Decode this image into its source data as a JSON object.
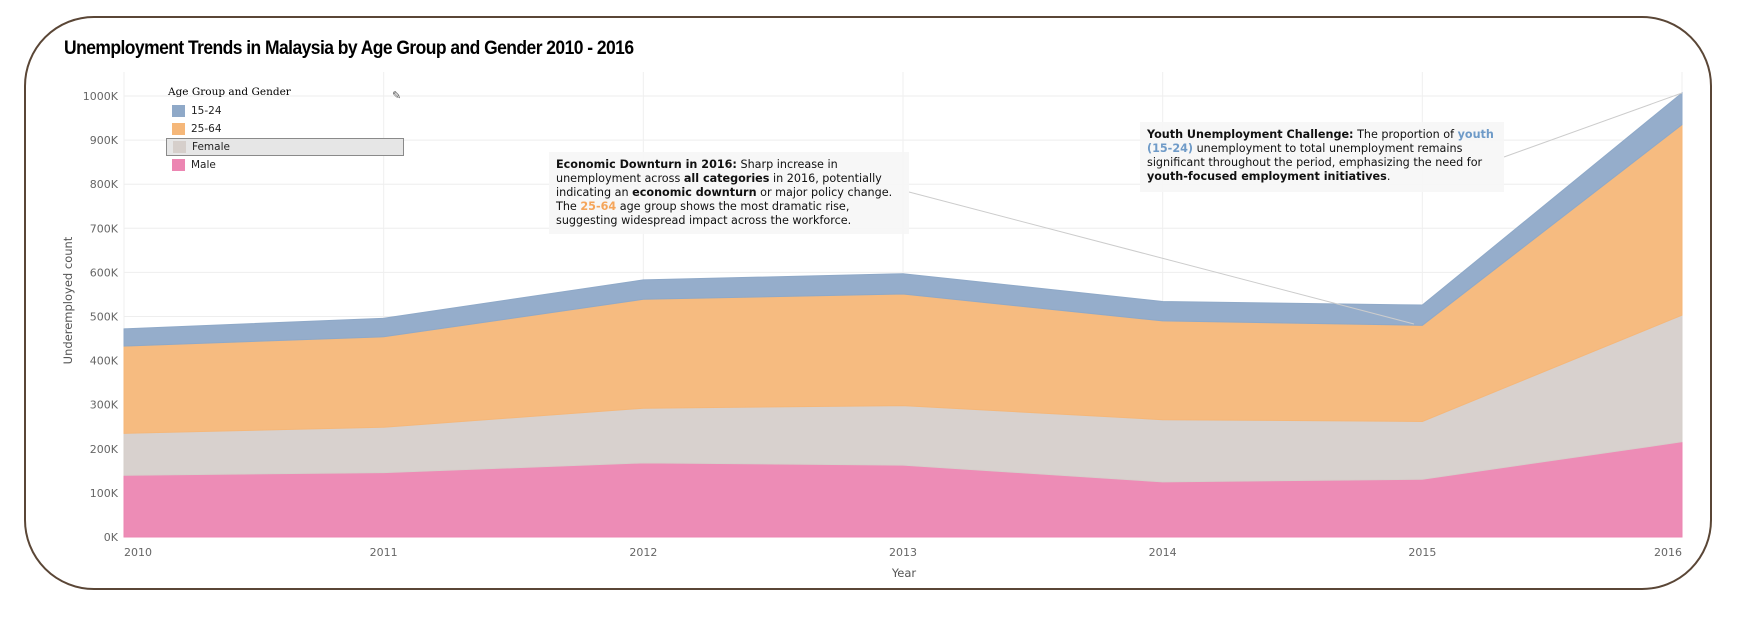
{
  "title": "Unemployment Trends in Malaysia by Age Group and Gender 2010 - 2016",
  "legend": {
    "title": "Age Group and Gender",
    "items": [
      {
        "label": "15-24",
        "color": "#8fa9c8"
      },
      {
        "label": "25-64",
        "color": "#f5b779"
      },
      {
        "label": "Female",
        "color": "#d6cfcb"
      },
      {
        "label": "Male",
        "color": "#ec86b2"
      }
    ]
  },
  "annotations": {
    "downturn": {
      "heading": "Economic Downturn in 2016:",
      "t1": " Sharp increase in unemployment across ",
      "b1": "all categories",
      "t2": " in 2016, potentially indicating an ",
      "b2": "economic downturn",
      "t3": " or major policy change. The ",
      "hl": "25-64",
      "t4": " age group shows the most dramatic rise, suggesting widespread impact across the workforce."
    },
    "youth": {
      "heading": "Youth Unemployment Challenge:",
      "t1": " The proportion of ",
      "hl": "youth (15-24)",
      "t2": " unemployment to total unemployment remains significant throughout the period, emphasizing the need for ",
      "b1": "youth-focused employment initiatives",
      "t3": "."
    }
  },
  "chart_data": {
    "type": "area",
    "title": "Unemployment Trends in Malaysia by Age Group and Gender 2010 - 2016",
    "xlabel": "Year",
    "ylabel": "Underemployed count",
    "x": [
      "2010",
      "2011",
      "2012",
      "2013",
      "2014",
      "2015",
      "2016"
    ],
    "ylim": [
      0,
      1000000
    ],
    "yticks": [
      "0K",
      "100K",
      "200K",
      "300K",
      "400K",
      "500K",
      "600K",
      "700K",
      "800K",
      "900K",
      "1000K"
    ],
    "stacked": true,
    "series": [
      {
        "name": "Male",
        "color": "#ec86b2",
        "values": [
          140000,
          146000,
          168000,
          163000,
          125000,
          131000,
          216000
        ]
      },
      {
        "name": "Female",
        "color": "#d6cfcb",
        "values": [
          95000,
          103000,
          124000,
          135000,
          141000,
          131000,
          287000
        ]
      },
      {
        "name": "25-64",
        "color": "#f5b779",
        "values": [
          198000,
          205000,
          247000,
          253000,
          224000,
          218000,
          432000
        ]
      },
      {
        "name": "15-24",
        "color": "#8fa9c8",
        "values": [
          39000,
          42000,
          44000,
          46000,
          44000,
          46000,
          72000
        ]
      }
    ],
    "grid": true
  }
}
